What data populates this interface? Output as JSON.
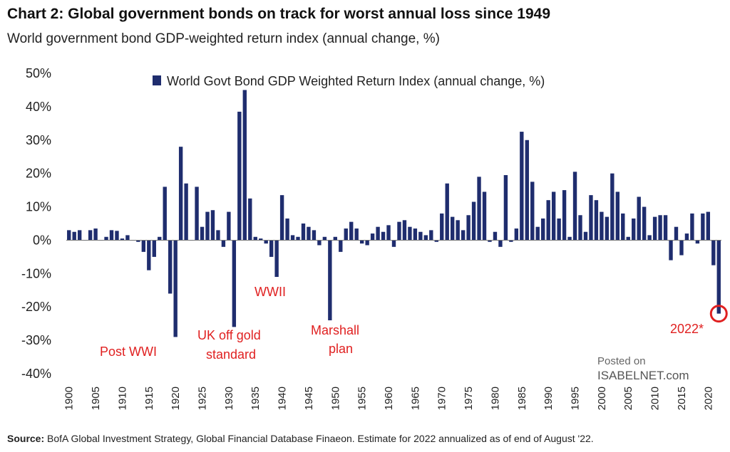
{
  "header": {
    "title": "Chart 2: Global government bonds on track for worst annual loss since 1949",
    "subtitle": "World government bond GDP-weighted return index (annual change, %)"
  },
  "footer": {
    "source_label": "Source:",
    "source_text": "BofA Global Investment Strategy, Global Financial Database Finaeon. Estimate for 2022 annualized as of end of August '22."
  },
  "watermark": {
    "line1": "Posted on",
    "line2": "ISABELNET.com"
  },
  "colors": {
    "bar": "#1f2d6e",
    "annotation": "#e02020",
    "highlight_circle": "#e02020"
  },
  "chart_data": {
    "type": "bar",
    "title": "",
    "xlabel": "",
    "ylabel": "",
    "ylim": [
      -40,
      50
    ],
    "yticks": [
      50,
      40,
      30,
      20,
      10,
      0,
      -10,
      -20,
      -30,
      -40
    ],
    "ytick_labels": [
      "50%",
      "40%",
      "30%",
      "20%",
      "10%",
      "0%",
      "-10%",
      "-20%",
      "-30%",
      "-40%"
    ],
    "xtick_labels": [
      "1900",
      "1905",
      "1910",
      "1915",
      "1920",
      "1925",
      "1930",
      "1935",
      "1940",
      "1945",
      "1950",
      "1955",
      "1960",
      "1965",
      "1970",
      "1975",
      "1980",
      "1985",
      "1990",
      "1995",
      "2000",
      "2005",
      "2010",
      "2015",
      "2020"
    ],
    "legend_position": "top-center",
    "grid": false,
    "series": [
      {
        "name": "World Govt Bond GDP Weighted Return Index (annual change, %)",
        "x": [
          1900,
          1901,
          1902,
          1903,
          1904,
          1905,
          1906,
          1907,
          1908,
          1909,
          1910,
          1911,
          1912,
          1913,
          1914,
          1915,
          1916,
          1917,
          1918,
          1919,
          1920,
          1921,
          1922,
          1923,
          1924,
          1925,
          1926,
          1927,
          1928,
          1929,
          1930,
          1931,
          1932,
          1933,
          1934,
          1935,
          1936,
          1937,
          1938,
          1939,
          1940,
          1941,
          1942,
          1943,
          1944,
          1945,
          1946,
          1947,
          1948,
          1949,
          1950,
          1951,
          1952,
          1953,
          1954,
          1955,
          1956,
          1957,
          1958,
          1959,
          1960,
          1961,
          1962,
          1963,
          1964,
          1965,
          1966,
          1967,
          1968,
          1969,
          1970,
          1971,
          1972,
          1973,
          1974,
          1975,
          1976,
          1977,
          1978,
          1979,
          1980,
          1981,
          1982,
          1983,
          1984,
          1985,
          1986,
          1987,
          1988,
          1989,
          1990,
          1991,
          1992,
          1993,
          1994,
          1995,
          1996,
          1997,
          1998,
          1999,
          2000,
          2001,
          2002,
          2003,
          2004,
          2005,
          2006,
          2007,
          2008,
          2009,
          2010,
          2011,
          2012,
          2013,
          2014,
          2015,
          2016,
          2017,
          2018,
          2019,
          2020,
          2021,
          2022
        ],
        "values": [
          3,
          2.5,
          3,
          0,
          3,
          3.5,
          0,
          1,
          3,
          2.8,
          0.5,
          1.5,
          0,
          -0.5,
          -3.5,
          -9,
          -5,
          1,
          16,
          -16,
          -29,
          28,
          17,
          0,
          16,
          4,
          8.5,
          9,
          3,
          -2,
          8.5,
          -26,
          38.5,
          45,
          12.5,
          1,
          0.5,
          -1,
          -5,
          -11,
          13.5,
          6.5,
          1.5,
          1,
          5,
          4,
          3,
          -1.5,
          1,
          -24,
          1,
          -3.5,
          3.5,
          5.5,
          3.5,
          -1,
          -1.5,
          2,
          4,
          2.5,
          4.5,
          -2,
          5.5,
          6,
          4,
          3.5,
          2.5,
          1.5,
          3,
          -0.5,
          8,
          17,
          7,
          6,
          3,
          7.5,
          11.5,
          19,
          14.5,
          -0.5,
          2.5,
          -2,
          19.5,
          -0.5,
          3.5,
          32.5,
          30,
          17.5,
          4,
          6.5,
          12,
          14.5,
          6.5,
          15,
          1,
          20.5,
          7.5,
          2.5,
          13.5,
          12,
          8.5,
          7,
          20,
          14.5,
          8,
          1,
          6.5,
          13,
          10,
          1.5,
          7,
          7.5,
          7.5,
          -6,
          4,
          -4.5,
          2,
          8,
          -1,
          8,
          8.5,
          -7.5,
          -22
        ]
      }
    ],
    "annotations": [
      {
        "text": "Post WWI"
      },
      {
        "text": "UK off gold"
      },
      {
        "text": "standard"
      },
      {
        "text": "WWII"
      },
      {
        "text": "Marshall"
      },
      {
        "text": "plan"
      },
      {
        "text": "2022*"
      }
    ]
  }
}
